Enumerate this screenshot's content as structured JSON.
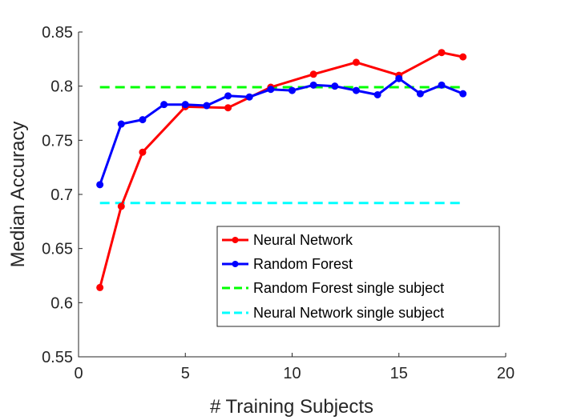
{
  "chart_data": {
    "type": "line",
    "xlabel": "# Training Subjects",
    "ylabel": "Median Accuracy",
    "xlim": [
      0,
      20
    ],
    "ylim": [
      0.55,
      0.85
    ],
    "xticks": [
      0,
      5,
      10,
      15,
      20
    ],
    "yticks": [
      0.55,
      0.6,
      0.65,
      0.7,
      0.75,
      0.8,
      0.85
    ],
    "xtick_labels": [
      "0",
      "5",
      "10",
      "15",
      "20"
    ],
    "ytick_labels": [
      "0.55",
      "0.6",
      "0.65",
      "0.7",
      "0.75",
      "0.8",
      "0.85"
    ],
    "grid": false,
    "legend_position": "bottom-right",
    "series": [
      {
        "name": "Neural Network",
        "color": "#ff0000",
        "style": "solid",
        "marker": "circle",
        "x": [
          1,
          2,
          3,
          5,
          7,
          9,
          11,
          13,
          15,
          17,
          18
        ],
        "y": [
          0.614,
          0.689,
          0.739,
          0.781,
          0.78,
          0.799,
          0.811,
          0.822,
          0.81,
          0.831,
          0.827
        ]
      },
      {
        "name": "Random Forest",
        "color": "#0000ff",
        "style": "solid",
        "marker": "circle",
        "x": [
          1,
          2,
          3,
          4,
          5,
          6,
          7,
          8,
          9,
          10,
          11,
          12,
          13,
          14,
          15,
          16,
          17,
          18
        ],
        "y": [
          0.709,
          0.765,
          0.769,
          0.783,
          0.783,
          0.782,
          0.791,
          0.79,
          0.797,
          0.796,
          0.801,
          0.8,
          0.796,
          0.792,
          0.807,
          0.793,
          0.801,
          0.793
        ]
      },
      {
        "name": "Random Forest single subject",
        "color": "#00ff00",
        "style": "dashed",
        "marker": "none",
        "x": [
          1,
          18
        ],
        "y": [
          0.799,
          0.799
        ]
      },
      {
        "name": "Neural Network single subject",
        "color": "#00ffff",
        "style": "dashed",
        "marker": "none",
        "x": [
          1,
          18
        ],
        "y": [
          0.692,
          0.692
        ]
      }
    ]
  }
}
